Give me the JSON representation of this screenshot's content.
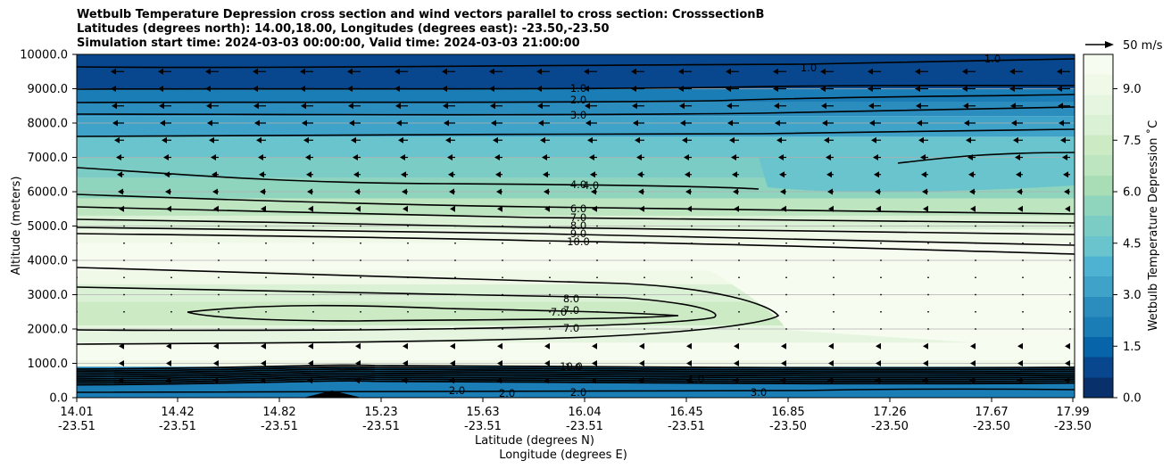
{
  "chart_data": {
    "type": "contour",
    "title_lines": [
      "Wetbulb Temperature Depression cross section and wind vectors parallel to cross section: CrosssectionB",
      "Latitudes (degrees north): 14.00,18.00, Longitudes (degrees east): -23.50,-23.50",
      "Simulation start time: 2024-03-03 00:00:00, Valid time: 2024-03-03 21:00:00"
    ],
    "ylabel": "Altitude (meters)",
    "xlabel_lat": "Latitude (degrees N)",
    "xlabel_lon": "Longitude (degrees E)",
    "ylim": [
      0,
      10000
    ],
    "yticks": [
      "0.0",
      "1000.0",
      "2000.0",
      "3000.0",
      "4000.0",
      "5000.0",
      "6000.0",
      "7000.0",
      "8000.0",
      "9000.0",
      "10000.0"
    ],
    "ytick_values": [
      0,
      1000,
      2000,
      3000,
      4000,
      5000,
      6000,
      7000,
      8000,
      9000,
      10000
    ],
    "xticks": [
      {
        "lat": "14.01",
        "lon": "-23.51"
      },
      {
        "lat": "14.42",
        "lon": "-23.51"
      },
      {
        "lat": "14.82",
        "lon": "-23.51"
      },
      {
        "lat": "15.23",
        "lon": "-23.51"
      },
      {
        "lat": "15.63",
        "lon": "-23.51"
      },
      {
        "lat": "16.04",
        "lon": "-23.51"
      },
      {
        "lat": "16.45",
        "lon": "-23.51"
      },
      {
        "lat": "16.85",
        "lon": "-23.50"
      },
      {
        "lat": "17.26",
        "lon": "-23.50"
      },
      {
        "lat": "17.67",
        "lon": "-23.50"
      },
      {
        "lat": "17.99",
        "lon": "-23.50"
      }
    ],
    "colorbar": {
      "label": "Wetbulb Temperature Depression ˚C",
      "ticks": [
        "0.0",
        "1.5",
        "3.0",
        "4.5",
        "6.0",
        "7.5",
        "9.0"
      ],
      "tick_values": [
        0,
        1.5,
        3,
        4.5,
        6,
        7.5,
        9
      ],
      "range": [
        0,
        10
      ],
      "colormap": [
        "#08306b",
        "#08478d",
        "#0864a8",
        "#1a7db6",
        "#2b8cbe",
        "#3fa2c8",
        "#4eb3d3",
        "#6ac4cd",
        "#7bccc4",
        "#8fd4bc",
        "#a8ddb5",
        "#bde5bf",
        "#ccebc5",
        "#dbf1d5",
        "#e5f5e0",
        "#f0f9e8",
        "#f7fcf0"
      ]
    },
    "quiver_key": "50 m/s",
    "grid": "horizontal",
    "contour_labels": [
      "1.0",
      "2.0",
      "3.0",
      "4.0",
      "4.0",
      "6.0",
      "7.0",
      "8.0",
      "9.0",
      "10.0",
      "8.0",
      "7.0",
      "7.0",
      "7.0",
      "10.0",
      "1.0",
      "2.0",
      "2.0",
      "3.0",
      "1.0",
      "1.0",
      "2.0",
      "1.0"
    ]
  }
}
